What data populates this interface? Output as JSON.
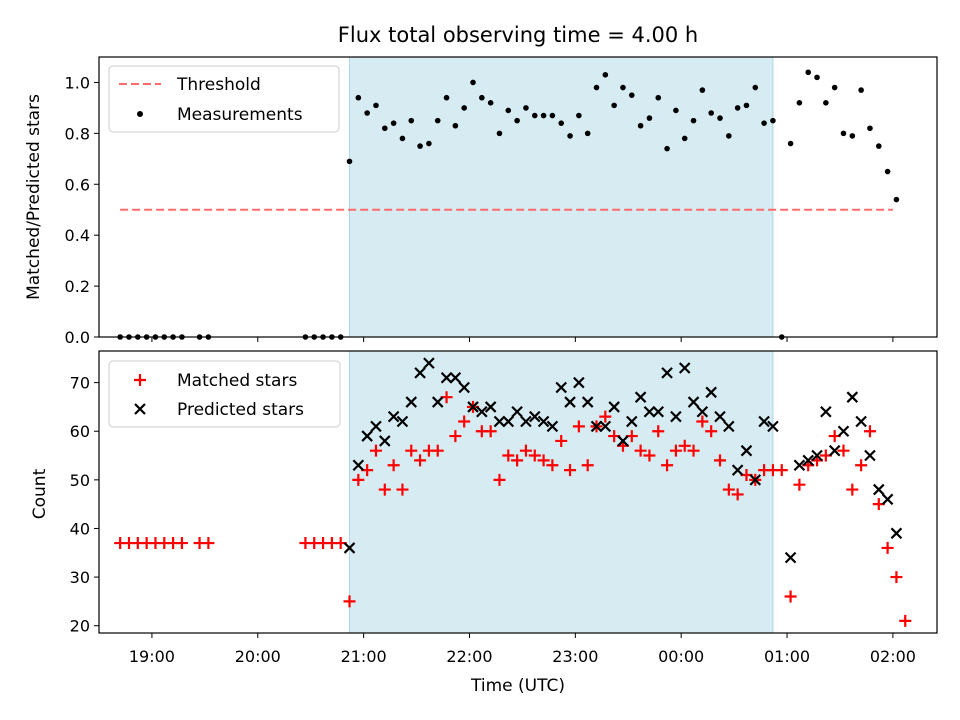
{
  "chart_data": [
    {
      "type": "scatter",
      "title": "Flux total observing time = 4.00 h",
      "xlabel": "",
      "ylabel": "Matched/Predicted stars",
      "xlim": [
        "18:30",
        "02:25"
      ],
      "ylim": [
        0.0,
        1.1
      ],
      "x_ticks": [
        "19:00",
        "20:00",
        "21:00",
        "22:00",
        "23:00",
        "00:00",
        "01:00",
        "02:00"
      ],
      "y_ticks": [
        "0.0",
        "0.2",
        "0.4",
        "0.6",
        "0.8",
        "1.0"
      ],
      "shaded_region": {
        "x": [
          "20:52",
          "00:52"
        ],
        "color": "#add8e6"
      },
      "legend_position": "upper-left",
      "threshold": {
        "name": "Threshold",
        "value": 0.5,
        "x": [
          "18:42",
          "02:00"
        ],
        "color": "#ff6b6b",
        "style": "dashed"
      },
      "series": [
        {
          "name": "Measurements",
          "marker": "dot",
          "color": "#000000",
          "points": [
            [
              "18:42",
              0.0
            ],
            [
              "18:47",
              0.0
            ],
            [
              "18:52",
              0.0
            ],
            [
              "18:57",
              0.0
            ],
            [
              "19:02",
              0.0
            ],
            [
              "19:07",
              0.0
            ],
            [
              "19:12",
              0.0
            ],
            [
              "19:17",
              0.0
            ],
            [
              "19:27",
              0.0
            ],
            [
              "19:32",
              0.0
            ],
            [
              "20:27",
              0.0
            ],
            [
              "20:32",
              0.0
            ],
            [
              "20:37",
              0.0
            ],
            [
              "20:42",
              0.0
            ],
            [
              "20:47",
              0.0
            ],
            [
              "20:52",
              0.69
            ],
            [
              "20:57",
              0.94
            ],
            [
              "21:02",
              0.88
            ],
            [
              "21:07",
              0.91
            ],
            [
              "21:12",
              0.82
            ],
            [
              "21:17",
              0.84
            ],
            [
              "21:22",
              0.78
            ],
            [
              "21:27",
              0.85
            ],
            [
              "21:32",
              0.75
            ],
            [
              "21:37",
              0.76
            ],
            [
              "21:42",
              0.85
            ],
            [
              "21:47",
              0.94
            ],
            [
              "21:52",
              0.83
            ],
            [
              "21:57",
              0.9
            ],
            [
              "22:02",
              1.0
            ],
            [
              "22:07",
              0.94
            ],
            [
              "22:12",
              0.92
            ],
            [
              "22:17",
              0.8
            ],
            [
              "22:22",
              0.89
            ],
            [
              "22:27",
              0.85
            ],
            [
              "22:32",
              0.9
            ],
            [
              "22:37",
              0.87
            ],
            [
              "22:42",
              0.87
            ],
            [
              "22:47",
              0.87
            ],
            [
              "22:52",
              0.84
            ],
            [
              "22:57",
              0.79
            ],
            [
              "23:02",
              0.87
            ],
            [
              "23:07",
              0.8
            ],
            [
              "23:12",
              0.98
            ],
            [
              "23:17",
              1.03
            ],
            [
              "23:22",
              0.91
            ],
            [
              "23:27",
              0.98
            ],
            [
              "23:32",
              0.95
            ],
            [
              "23:37",
              0.83
            ],
            [
              "23:42",
              0.86
            ],
            [
              "23:47",
              0.94
            ],
            [
              "23:52",
              0.74
            ],
            [
              "23:57",
              0.89
            ],
            [
              "00:02",
              0.78
            ],
            [
              "00:07",
              0.85
            ],
            [
              "00:12",
              0.97
            ],
            [
              "00:17",
              0.88
            ],
            [
              "00:22",
              0.86
            ],
            [
              "00:27",
              0.79
            ],
            [
              "00:32",
              0.9
            ],
            [
              "00:37",
              0.91
            ],
            [
              "00:42",
              0.98
            ],
            [
              "00:47",
              0.84
            ],
            [
              "00:52",
              0.85
            ],
            [
              "00:57",
              0.0
            ],
            [
              "01:02",
              0.76
            ],
            [
              "01:07",
              0.92
            ],
            [
              "01:12",
              1.04
            ],
            [
              "01:17",
              1.02
            ],
            [
              "01:22",
              0.92
            ],
            [
              "01:27",
              0.98
            ],
            [
              "01:32",
              0.8
            ],
            [
              "01:37",
              0.79
            ],
            [
              "01:42",
              0.97
            ],
            [
              "01:47",
              0.82
            ],
            [
              "01:52",
              0.75
            ],
            [
              "01:57",
              0.65
            ],
            [
              "02:02",
              0.54
            ]
          ]
        }
      ]
    },
    {
      "type": "scatter",
      "title": "",
      "xlabel": "Time (UTC)",
      "ylabel": "Count",
      "xlim": [
        "18:30",
        "02:25"
      ],
      "ylim": [
        18.5,
        76.5
      ],
      "x_ticks": [
        "19:00",
        "20:00",
        "21:00",
        "22:00",
        "23:00",
        "00:00",
        "01:00",
        "02:00"
      ],
      "y_ticks": [
        "20",
        "30",
        "40",
        "50",
        "60",
        "70"
      ],
      "shaded_region": {
        "x": [
          "20:52",
          "00:52"
        ],
        "color": "#add8e6"
      },
      "legend_position": "upper-left",
      "series": [
        {
          "name": "Matched stars",
          "marker": "plus",
          "color": "#ff0000",
          "points": [
            [
              "18:42",
              37
            ],
            [
              "18:47",
              37
            ],
            [
              "18:52",
              37
            ],
            [
              "18:57",
              37
            ],
            [
              "19:02",
              37
            ],
            [
              "19:07",
              37
            ],
            [
              "19:12",
              37
            ],
            [
              "19:17",
              37
            ],
            [
              "19:27",
              37
            ],
            [
              "19:32",
              37
            ],
            [
              "20:27",
              37
            ],
            [
              "20:32",
              37
            ],
            [
              "20:37",
              37
            ],
            [
              "20:42",
              37
            ],
            [
              "20:47",
              37
            ],
            [
              "20:52",
              25
            ],
            [
              "20:57",
              50
            ],
            [
              "21:02",
              52
            ],
            [
              "21:07",
              56
            ],
            [
              "21:12",
              48
            ],
            [
              "21:17",
              53
            ],
            [
              "21:22",
              48
            ],
            [
              "21:27",
              56
            ],
            [
              "21:32",
              54
            ],
            [
              "21:37",
              56
            ],
            [
              "21:42",
              56
            ],
            [
              "21:47",
              67
            ],
            [
              "21:52",
              59
            ],
            [
              "21:57",
              62
            ],
            [
              "22:02",
              65
            ],
            [
              "22:07",
              60
            ],
            [
              "22:12",
              60
            ],
            [
              "22:17",
              50
            ],
            [
              "22:22",
              55
            ],
            [
              "22:27",
              54
            ],
            [
              "22:32",
              56
            ],
            [
              "22:37",
              55
            ],
            [
              "22:42",
              54
            ],
            [
              "22:47",
              53
            ],
            [
              "22:52",
              58
            ],
            [
              "22:57",
              52
            ],
            [
              "23:02",
              61
            ],
            [
              "23:07",
              53
            ],
            [
              "23:12",
              61
            ],
            [
              "23:17",
              63
            ],
            [
              "23:22",
              59
            ],
            [
              "23:27",
              57
            ],
            [
              "23:32",
              59
            ],
            [
              "23:37",
              56
            ],
            [
              "23:42",
              55
            ],
            [
              "23:47",
              60
            ],
            [
              "23:52",
              53
            ],
            [
              "23:57",
              56
            ],
            [
              "00:02",
              57
            ],
            [
              "00:07",
              56
            ],
            [
              "00:12",
              62
            ],
            [
              "00:17",
              60
            ],
            [
              "00:22",
              54
            ],
            [
              "00:27",
              48
            ],
            [
              "00:32",
              47
            ],
            [
              "00:37",
              51
            ],
            [
              "00:42",
              50
            ],
            [
              "00:47",
              52
            ],
            [
              "00:52",
              52
            ],
            [
              "00:57",
              52
            ],
            [
              "01:02",
              26
            ],
            [
              "01:07",
              49
            ],
            [
              "01:12",
              53
            ],
            [
              "01:17",
              54
            ],
            [
              "01:22",
              55
            ],
            [
              "01:27",
              59
            ],
            [
              "01:32",
              56
            ],
            [
              "01:37",
              48
            ],
            [
              "01:42",
              53
            ],
            [
              "01:47",
              60
            ],
            [
              "01:52",
              45
            ],
            [
              "01:57",
              36
            ],
            [
              "02:02",
              30
            ],
            [
              "02:07",
              21
            ]
          ]
        },
        {
          "name": "Predicted stars",
          "marker": "x",
          "color": "#000000",
          "points": [
            [
              "20:52",
              36
            ],
            [
              "20:57",
              53
            ],
            [
              "21:02",
              59
            ],
            [
              "21:07",
              61
            ],
            [
              "21:12",
              58
            ],
            [
              "21:17",
              63
            ],
            [
              "21:22",
              62
            ],
            [
              "21:27",
              66
            ],
            [
              "21:32",
              72
            ],
            [
              "21:37",
              74
            ],
            [
              "21:42",
              66
            ],
            [
              "21:47",
              71
            ],
            [
              "21:52",
              71
            ],
            [
              "21:57",
              69
            ],
            [
              "22:02",
              65
            ],
            [
              "22:07",
              64
            ],
            [
              "22:12",
              65
            ],
            [
              "22:17",
              62
            ],
            [
              "22:22",
              62
            ],
            [
              "22:27",
              64
            ],
            [
              "22:32",
              62
            ],
            [
              "22:37",
              63
            ],
            [
              "22:42",
              62
            ],
            [
              "22:47",
              61
            ],
            [
              "22:52",
              69
            ],
            [
              "22:57",
              66
            ],
            [
              "23:02",
              70
            ],
            [
              "23:07",
              66
            ],
            [
              "23:12",
              61
            ],
            [
              "23:17",
              61
            ],
            [
              "23:22",
              65
            ],
            [
              "23:27",
              58
            ],
            [
              "23:32",
              62
            ],
            [
              "23:37",
              67
            ],
            [
              "23:42",
              64
            ],
            [
              "23:47",
              64
            ],
            [
              "23:52",
              72
            ],
            [
              "23:57",
              63
            ],
            [
              "00:02",
              73
            ],
            [
              "00:07",
              66
            ],
            [
              "00:12",
              64
            ],
            [
              "00:17",
              68
            ],
            [
              "00:22",
              63
            ],
            [
              "00:27",
              61
            ],
            [
              "00:32",
              52
            ],
            [
              "00:37",
              56
            ],
            [
              "00:42",
              50
            ],
            [
              "00:47",
              62
            ],
            [
              "00:52",
              61
            ],
            [
              "01:02",
              34
            ],
            [
              "01:07",
              53
            ],
            [
              "01:12",
              54
            ],
            [
              "01:17",
              55
            ],
            [
              "01:22",
              64
            ],
            [
              "01:27",
              56
            ],
            [
              "01:32",
              60
            ],
            [
              "01:37",
              67
            ],
            [
              "01:42",
              62
            ],
            [
              "01:47",
              55
            ],
            [
              "01:52",
              48
            ],
            [
              "01:57",
              46
            ],
            [
              "02:02",
              39
            ]
          ]
        }
      ]
    }
  ]
}
